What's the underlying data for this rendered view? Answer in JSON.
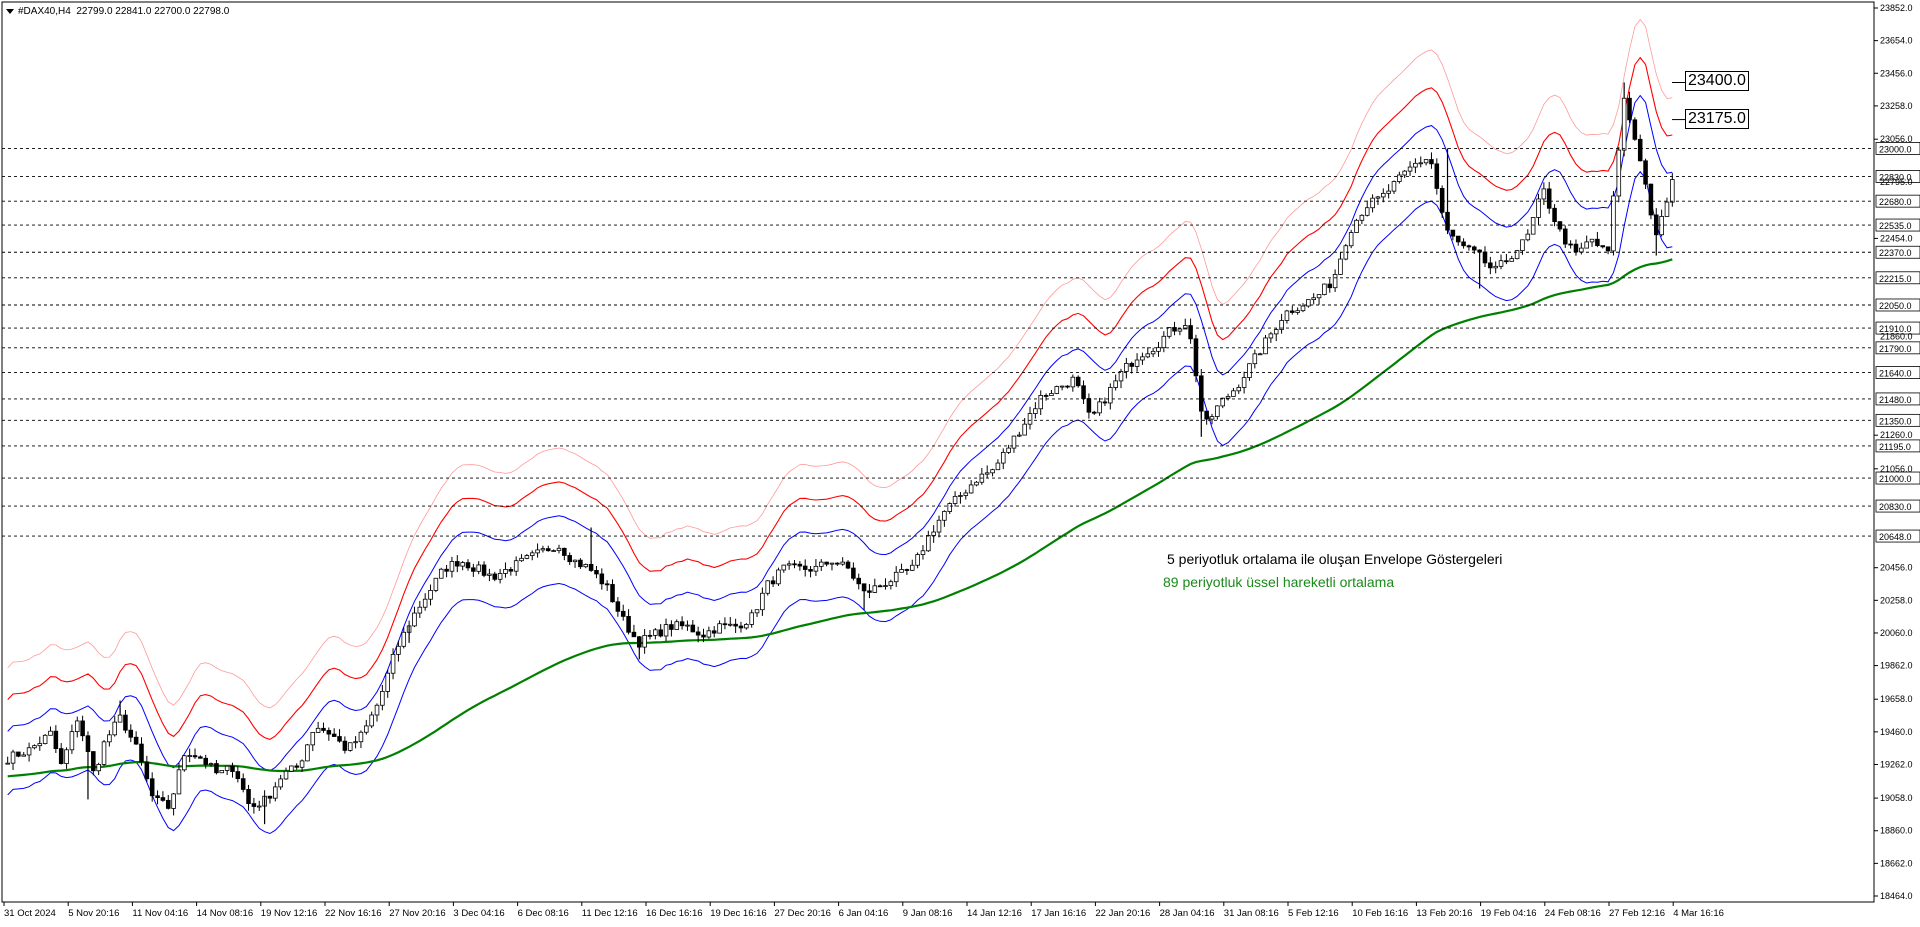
{
  "header": {
    "symbol": "#DAX40,H4",
    "ohlc": "22799.0 22841.0 22700.0 22798.0"
  },
  "annotations": {
    "envelope_note": "5 periyotluk ortalama ile oluşan Envelope Göstergeleri",
    "ema_note": "89 periyotluk üssel hareketli ortalama"
  },
  "price_boxes": [
    {
      "label": "23400.0",
      "value": 23400
    },
    {
      "label": "23175.0",
      "value": 23175
    }
  ],
  "colors": {
    "background": "#ffffff",
    "candles": "#000000",
    "envelope_inner": "#0000ff",
    "envelope_middle": "#ff0000",
    "envelope_outer": "#ff9a9a",
    "ema": "#008000",
    "grid_level": "#000000"
  },
  "chart_data": {
    "type": "candlestick",
    "symbol": "#DAX40",
    "timeframe": "H4",
    "y_range": [
      18464.0,
      23852.0
    ],
    "y_ticks": [
      "23852.0",
      "23654.0",
      "23456.0",
      "23258.0",
      "23056.0",
      "22454.0",
      "21260.0",
      "21056.0",
      "20456.0",
      "20258.0",
      "20060.0",
      "19862.0",
      "19658.0",
      "19460.0",
      "19262.0",
      "19058.0",
      "18860.0",
      "18662.0",
      "18464.0"
    ],
    "y_labels_extra": [
      "22795.0",
      "21860.0"
    ],
    "horizontal_levels": [
      23000.0,
      22830.0,
      22680.0,
      22535.0,
      22370.0,
      22215.0,
      22050.0,
      21910.0,
      21790.0,
      21640.0,
      21480.0,
      21350.0,
      21195.0,
      21000.0,
      20830.0,
      20648.0
    ],
    "x_labels": [
      "31 Oct 2024",
      "5 Nov 20:16",
      "11 Nov 04:16",
      "14 Nov 08:16",
      "19 Nov 12:16",
      "22 Nov 16:16",
      "27 Nov 20:16",
      "3 Dec 04:16",
      "6 Dec 08:16",
      "11 Dec 12:16",
      "16 Dec 16:16",
      "19 Dec 16:16",
      "27 Dec 20:16",
      "6 Jan 04:16",
      "9 Jan 08:16",
      "14 Jan 12:16",
      "17 Jan 16:16",
      "22 Jan 20:16",
      "28 Jan 04:16",
      "31 Jan 08:16",
      "5 Feb 12:16",
      "10 Feb 16:16",
      "13 Feb 20:16",
      "19 Feb 04:16",
      "24 Feb 08:16",
      "27 Feb 12:16",
      "4 Mar 16:16"
    ],
    "close_path": [
      [
        0,
        19300
      ],
      [
        4,
        19350
      ],
      [
        8,
        19450
      ],
      [
        10,
        19250
      ],
      [
        13,
        19550
      ],
      [
        16,
        19200
      ],
      [
        18,
        19400
      ],
      [
        21,
        19550
      ],
      [
        24,
        19350
      ],
      [
        27,
        19050
      ],
      [
        30,
        19000
      ],
      [
        33,
        19350
      ],
      [
        36,
        19300
      ],
      [
        39,
        19200
      ],
      [
        42,
        19250
      ],
      [
        45,
        19000
      ],
      [
        48,
        19050
      ],
      [
        51,
        19200
      ],
      [
        54,
        19250
      ],
      [
        57,
        19500
      ],
      [
        60,
        19450
      ],
      [
        63,
        19350
      ],
      [
        66,
        19450
      ],
      [
        69,
        19650
      ],
      [
        72,
        19950
      ],
      [
        75,
        20150
      ],
      [
        78,
        20300
      ],
      [
        81,
        20450
      ],
      [
        84,
        20500
      ],
      [
        87,
        20450
      ],
      [
        90,
        20400
      ],
      [
        93,
        20450
      ],
      [
        96,
        20500
      ],
      [
        99,
        20550
      ],
      [
        102,
        20600
      ],
      [
        105,
        20500
      ],
      [
        108,
        20450
      ],
      [
        111,
        20350
      ],
      [
        114,
        20150
      ],
      [
        117,
        20000
      ],
      [
        120,
        20050
      ],
      [
        123,
        20100
      ],
      [
        126,
        20100
      ],
      [
        129,
        20050
      ],
      [
        132,
        20100
      ],
      [
        135,
        20100
      ],
      [
        138,
        20150
      ],
      [
        141,
        20350
      ],
      [
        144,
        20450
      ],
      [
        147,
        20450
      ],
      [
        150,
        20450
      ],
      [
        153,
        20500
      ],
      [
        156,
        20450
      ],
      [
        159,
        20300
      ],
      [
        162,
        20350
      ],
      [
        165,
        20400
      ],
      [
        168,
        20450
      ],
      [
        171,
        20650
      ],
      [
        174,
        20800
      ],
      [
        177,
        20900
      ],
      [
        180,
        21000
      ],
      [
        183,
        21050
      ],
      [
        186,
        21200
      ],
      [
        189,
        21350
      ],
      [
        192,
        21500
      ],
      [
        195,
        21550
      ],
      [
        198,
        21600
      ],
      [
        201,
        21350
      ],
      [
        204,
        21500
      ],
      [
        207,
        21650
      ],
      [
        210,
        21750
      ],
      [
        213,
        21800
      ],
      [
        216,
        21900
      ],
      [
        219,
        21950
      ],
      [
        221,
        21550
      ],
      [
        222,
        21300
      ],
      [
        225,
        21450
      ],
      [
        228,
        21550
      ],
      [
        231,
        21700
      ],
      [
        234,
        21850
      ],
      [
        237,
        22000
      ],
      [
        240,
        22050
      ],
      [
        243,
        22100
      ],
      [
        246,
        22200
      ],
      [
        249,
        22500
      ],
      [
        252,
        22650
      ],
      [
        255,
        22700
      ],
      [
        258,
        22800
      ],
      [
        261,
        22900
      ],
      [
        264,
        22950
      ],
      [
        267,
        22500
      ],
      [
        270,
        22400
      ],
      [
        273,
        22350
      ],
      [
        276,
        22250
      ],
      [
        279,
        22350
      ],
      [
        282,
        22450
      ],
      [
        285,
        22750
      ],
      [
        288,
        22500
      ],
      [
        291,
        22350
      ],
      [
        294,
        22450
      ],
      [
        297,
        22350
      ],
      [
        300,
        23300
      ],
      [
        303,
        22950
      ],
      [
        306,
        22450
      ],
      [
        309,
        22800
      ]
    ],
    "wicks": [
      [
        21,
        19650
      ],
      [
        15,
        19050
      ],
      [
        48,
        18900
      ],
      [
        75,
        20000
      ],
      [
        108,
        20700
      ],
      [
        117,
        19900
      ],
      [
        159,
        20200
      ],
      [
        222,
        21250
      ],
      [
        267,
        23000
      ],
      [
        273,
        22150
      ],
      [
        300,
        23400
      ],
      [
        306,
        22350
      ]
    ],
    "total_bars": 312,
    "series": [
      {
        "name": "5 periyotluk ortalama ile oluşan Envelope Göstergeleri",
        "bands": [
          "outer upper",
          "upper",
          "inner upper",
          "inner lower"
        ]
      },
      {
        "name": "89 periyotluk üssel hareketli ortalama",
        "period": 89
      }
    ]
  }
}
